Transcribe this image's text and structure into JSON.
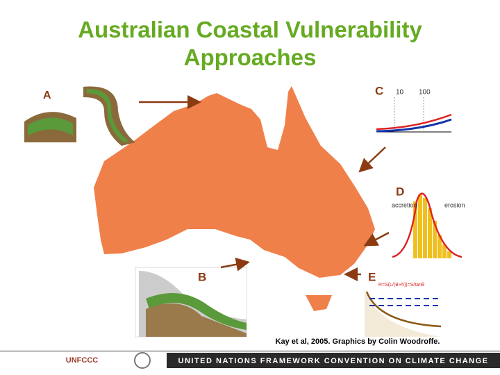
{
  "title": "Australian Coastal Vulnerability Approaches",
  "panels": {
    "a": {
      "label": "A"
    },
    "b": {
      "label": "B"
    },
    "c": {
      "label": "C",
      "scale_low": "10",
      "scale_high": "100"
    },
    "d": {
      "label": "D",
      "left": "accretion",
      "right": "erosion"
    },
    "e": {
      "label": "E",
      "formula": "R=S(L/(B+h))=S/tanθ"
    }
  },
  "credit": "Kay et al, 2005.  Graphics by Colin Woodroffe.",
  "footer": {
    "logo": "UNFCCC",
    "text": "UNITED NATIONS FRAMEWORK CONVENTION ON CLIMATE CHANGE"
  }
}
